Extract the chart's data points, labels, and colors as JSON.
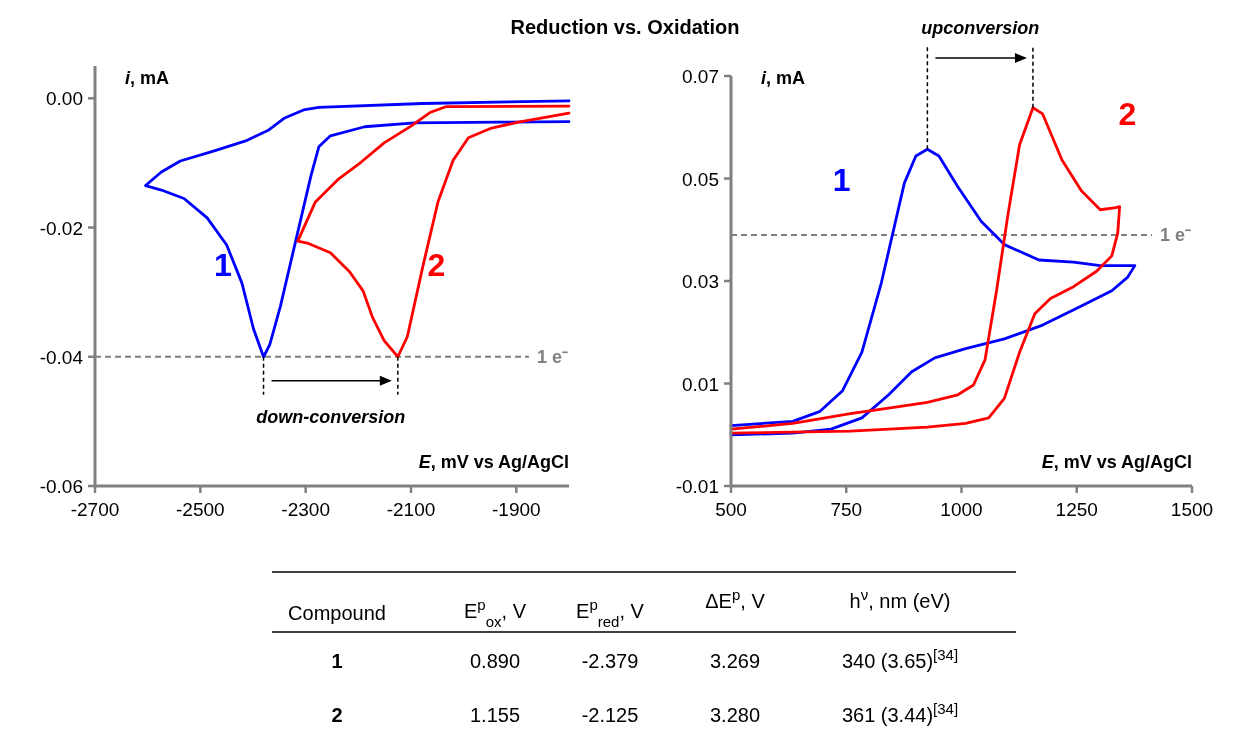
{
  "chart_data": [
    {
      "type": "line",
      "title": "Reduction vs. Oxidation",
      "xlabel": "E, mV vs Ag/AgCl",
      "ylabel": "i, mA",
      "xlim": [
        -2700,
        -1800
      ],
      "ylim": [
        -0.06,
        0.005
      ],
      "xticks": [
        -2700,
        -2500,
        -2300,
        -2100,
        -1900
      ],
      "yticks": [
        {
          "value": 0,
          "label": "0.00"
        },
        -0.02,
        -0.04,
        -0.06
      ],
      "grid": false,
      "ref_lines": [
        {
          "axis": "y",
          "value": -0.04,
          "label": "1 e⁻",
          "color": "#808080",
          "line_style": "dashed"
        }
      ],
      "annotations": [
        {
          "text": "down-conversion",
          "x": -2125,
          "y": -0.04
        }
      ],
      "series": [
        {
          "name": "1",
          "color": "#0000ff",
          "x": [
            -1800,
            -2078,
            -2275,
            -2304,
            -2341,
            -2370,
            -2414,
            -2472,
            -2538,
            -2574,
            -2604,
            -2574,
            -2531,
            -2487,
            -2450,
            -2421,
            -2399,
            -2380,
            -2368,
            -2348,
            -2319,
            -2290,
            -2275,
            -2253,
            -2188,
            -2093,
            -1932,
            -1800
          ],
          "values": [
            -0.0004,
            -0.0008,
            -0.0014,
            -0.0018,
            -0.0031,
            -0.0049,
            -0.0066,
            -0.0081,
            -0.0097,
            -0.0114,
            -0.0135,
            -0.0142,
            -0.0155,
            -0.0185,
            -0.0227,
            -0.0286,
            -0.0357,
            -0.04,
            -0.0381,
            -0.0322,
            -0.0221,
            -0.012,
            -0.0075,
            -0.0058,
            -0.0044,
            -0.0038,
            -0.0037,
            -0.0036
          ]
        },
        {
          "name": "2",
          "color": "#ff0000",
          "x": [
            -1800,
            -2034,
            -2064,
            -2100,
            -2151,
            -2195,
            -2239,
            -2282,
            -2315,
            -2297,
            -2253,
            -2217,
            -2191,
            -2173,
            -2151,
            -2125,
            -2107,
            -2078,
            -2049,
            -2020,
            -1991,
            -1947,
            -1896,
            -1800
          ],
          "values": [
            -0.0012,
            -0.0013,
            -0.0022,
            -0.0043,
            -0.0069,
            -0.0099,
            -0.0126,
            -0.0161,
            -0.0221,
            -0.0224,
            -0.0239,
            -0.0268,
            -0.0298,
            -0.0339,
            -0.0375,
            -0.04,
            -0.0369,
            -0.0262,
            -0.0161,
            -0.0096,
            -0.0061,
            -0.0046,
            -0.0037,
            -0.0023
          ]
        }
      ]
    },
    {
      "type": "line",
      "xlabel": "E, mV vs Ag/AgCl",
      "ylabel": "i, mA",
      "xlim": [
        500,
        1500
      ],
      "ylim": [
        -0.01,
        0.07
      ],
      "xticks": [
        500,
        750,
        1000,
        1250,
        1500
      ],
      "yticks": [
        -0.01,
        0.01,
        0.03,
        0.05,
        0.07
      ],
      "grid": false,
      "ref_lines": [
        {
          "axis": "y",
          "value": 0.039,
          "label": "1 e⁻",
          "color": "#808080",
          "line_style": "dashed"
        }
      ],
      "annotations": [
        {
          "text": "upconversion",
          "x": 1155,
          "y": 0.0638
        }
      ],
      "series": [
        {
          "name": "1",
          "color": "#0000ff",
          "x": [
            500,
            634,
            692,
            742,
            784,
            826,
            855,
            876,
            901,
            926,
            951,
            992,
            1043,
            1093,
            1168,
            1243,
            1301,
            1376,
            1360,
            1326,
            1260,
            1176,
            1093,
            1009,
            942,
            892,
            842,
            784,
            717,
            634,
            500
          ],
          "values": [
            0.0018,
            0.0026,
            0.0045,
            0.0086,
            0.0161,
            0.0296,
            0.0409,
            0.0491,
            0.0544,
            0.0557,
            0.0544,
            0.0484,
            0.0416,
            0.0371,
            0.0341,
            0.0337,
            0.033,
            0.033,
            0.0307,
            0.0281,
            0.0251,
            0.0214,
            0.0187,
            0.0168,
            0.015,
            0.0123,
            0.0078,
            0.0033,
            0.0011,
            0.0003,
            0.0
          ]
        },
        {
          "name": "2",
          "color": "#ff0000",
          "x": [
            500,
            634,
            759,
            842,
            926,
            992,
            1026,
            1051,
            1076,
            1101,
            1126,
            1155,
            1176,
            1218,
            1260,
            1301,
            1335,
            1343,
            1339,
            1326,
            1293,
            1243,
            1193,
            1159,
            1126,
            1093,
            1059,
            1009,
            926,
            759,
            500
          ],
          "values": [
            0.0011,
            0.0022,
            0.0041,
            0.0052,
            0.0063,
            0.0078,
            0.0097,
            0.0146,
            0.0281,
            0.0431,
            0.0566,
            0.0638,
            0.0626,
            0.0536,
            0.0476,
            0.0439,
            0.0443,
            0.0445,
            0.0394,
            0.0349,
            0.0319,
            0.0289,
            0.0266,
            0.0236,
            0.0161,
            0.0071,
            0.0033,
            0.0022,
            0.0015,
            0.0007,
            0.0003
          ]
        }
      ]
    },
    {
      "type": "other",
      "categories": [
        "Compound",
        "E$^{p}$$_{ox}$, V",
        "E$^{p}$$_{red}$, V",
        "ΔE$^{p}$, V",
        "h$^{ν}$, nm (eV)"
      ],
      "y_categories": [
        "1",
        "2"
      ],
      "cell_labels": [
        [
          "0.890",
          "-2.379",
          "3.269",
          "340 (3.65)$^{[34]}$"
        ],
        [
          "1.155",
          "-2.125",
          "3.280",
          "361 (3.44)$^{[34]}$"
        ]
      ]
    }
  ]
}
